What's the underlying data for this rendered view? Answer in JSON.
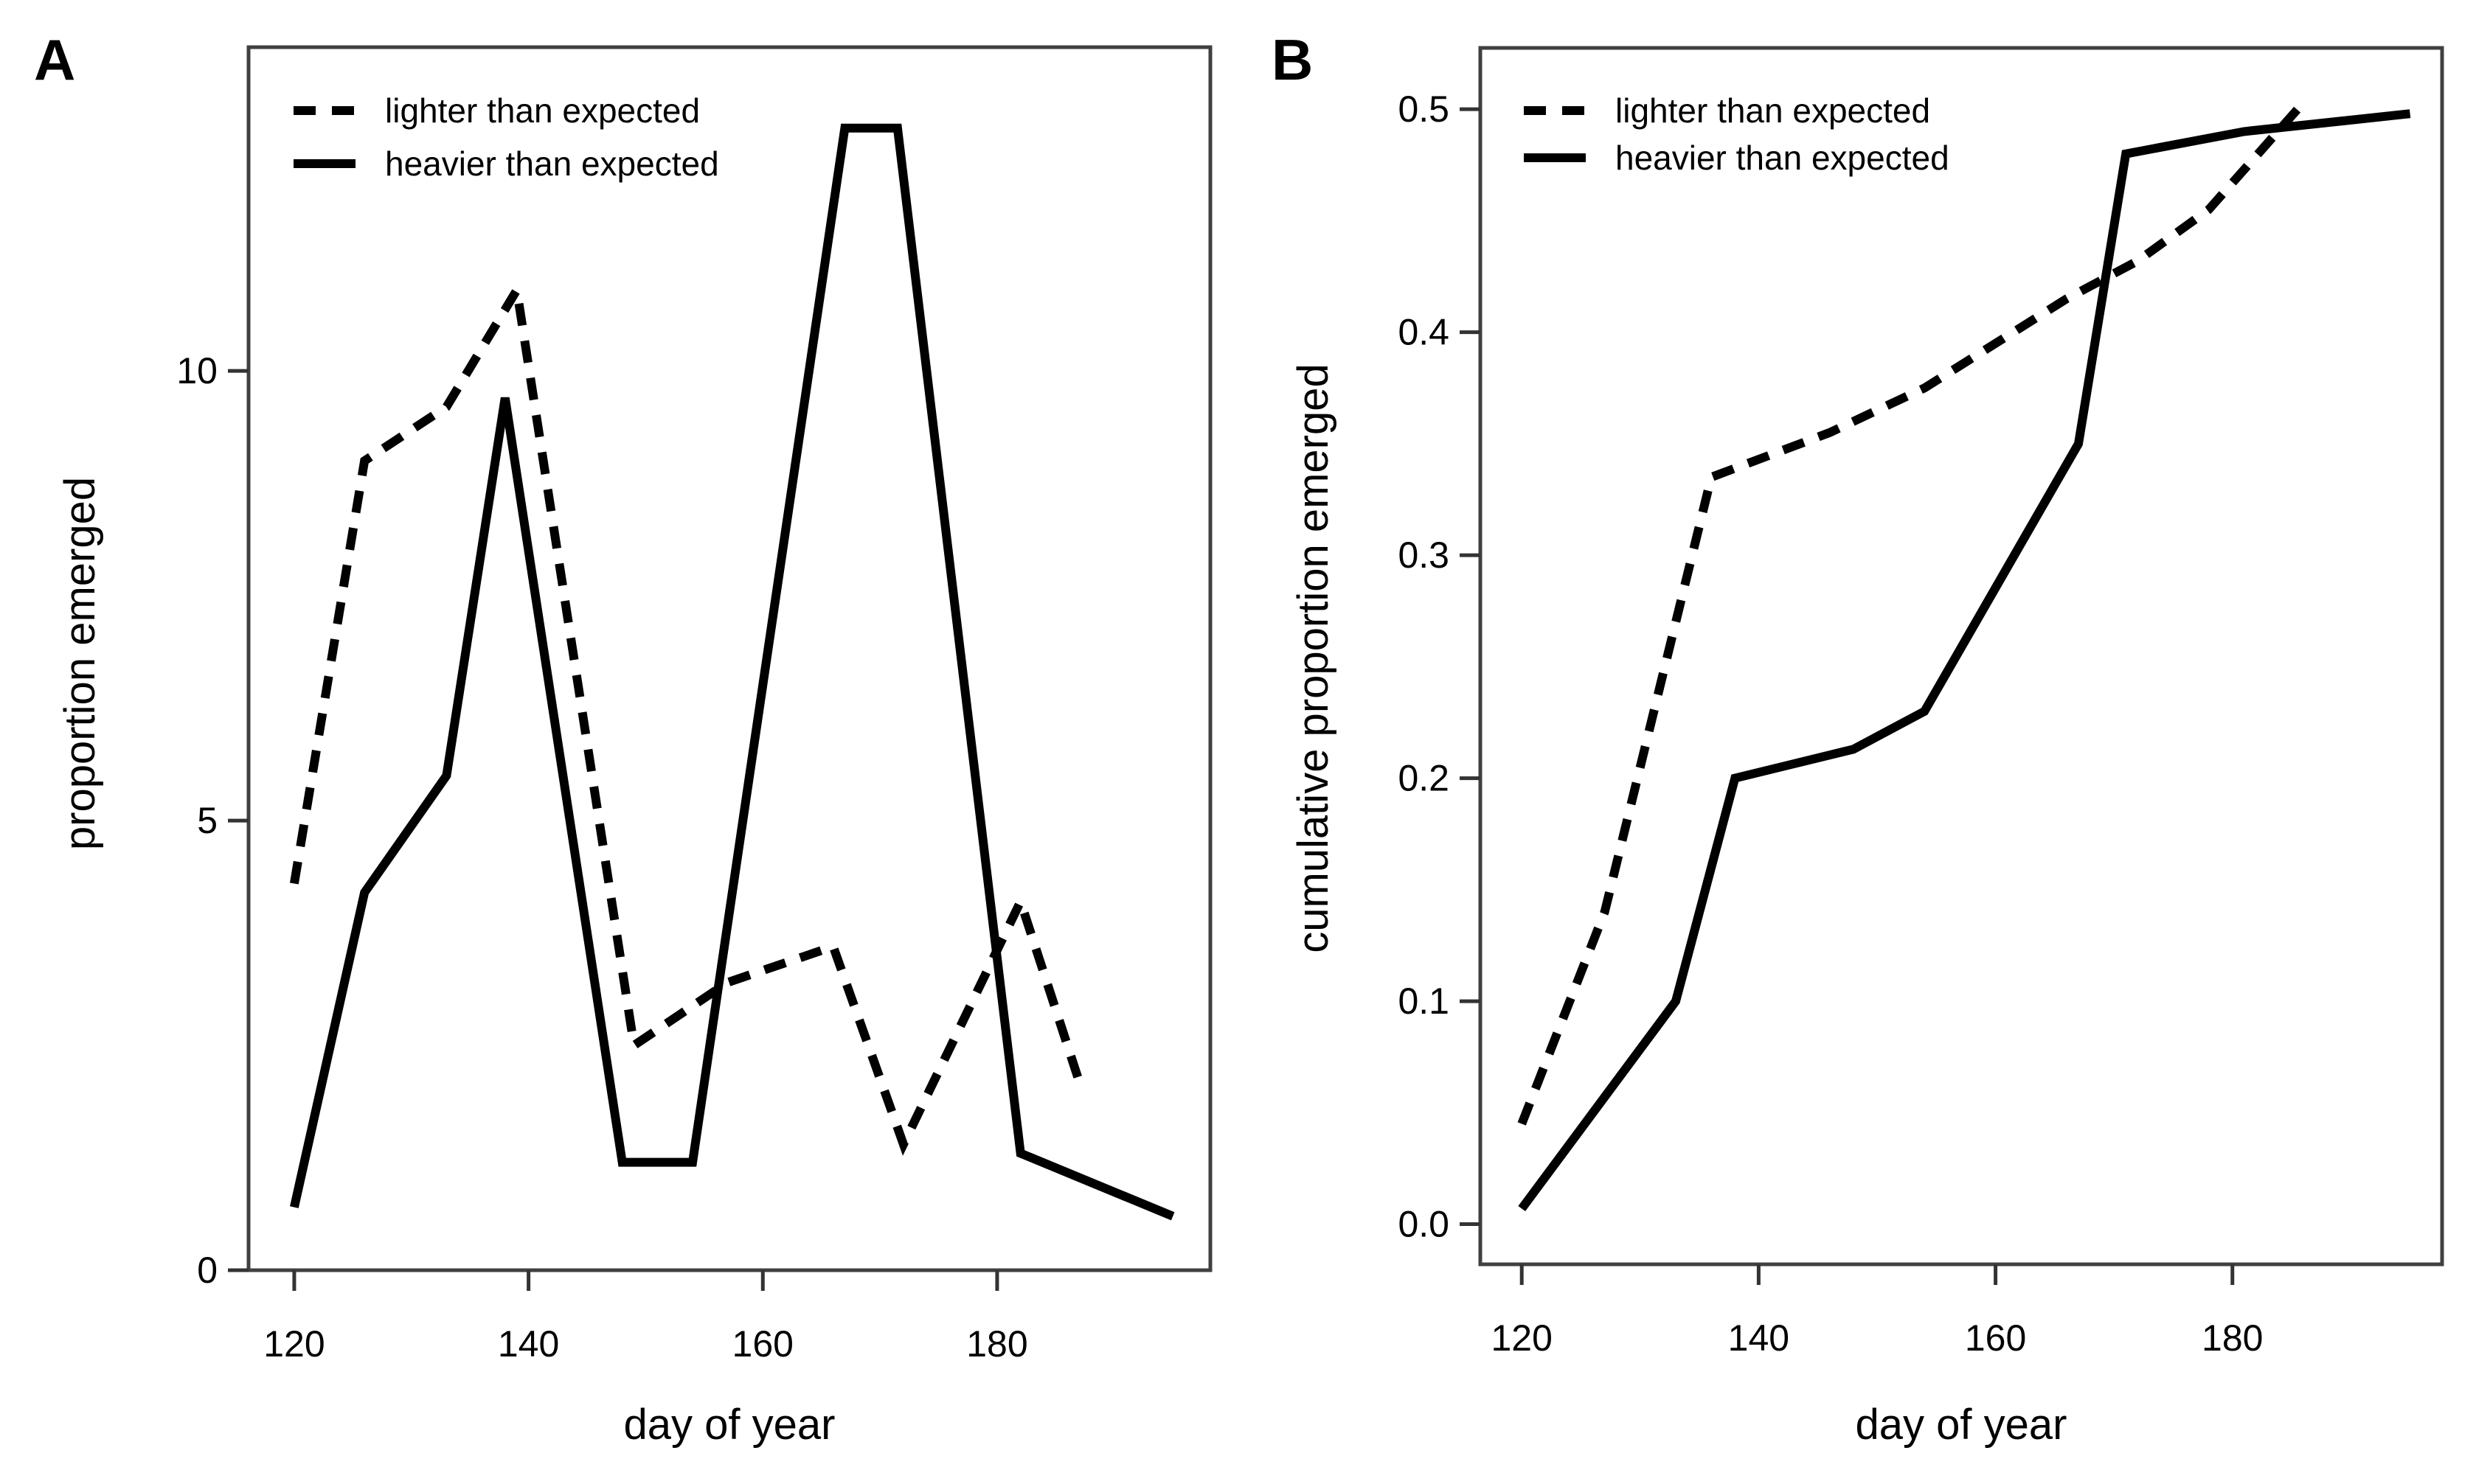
{
  "figure": {
    "panel_a_label": "A",
    "panel_b_label": "B"
  },
  "colors": {
    "line": "#000000",
    "axis_box": "#404040",
    "tick": "#333333",
    "background": "#ffffff"
  },
  "legend": {
    "dashed_label": "lighter than expected",
    "solid_label": "heavier than expected"
  },
  "chart_data": [
    {
      "id": "A",
      "type": "line",
      "title": "",
      "xlabel": "day of year",
      "ylabel": "proportion emerged",
      "x_ticks": [
        120,
        140,
        160,
        180
      ],
      "x_tick_labels": [
        "120",
        "140",
        "160",
        "180"
      ],
      "y_ticks": [
        0,
        5,
        10
      ],
      "y_tick_labels": [
        "0",
        "5",
        "10"
      ],
      "xlim": [
        116.1,
        198.2
      ],
      "ylim": [
        0,
        13.6
      ],
      "grid": false,
      "legend_position": "top-left",
      "series": [
        {
          "name": "lighter than expected",
          "style": "dashed",
          "points": [
            [
              120,
              4.3
            ],
            [
              126,
              9.0
            ],
            [
              133,
              9.6
            ],
            [
              139,
              10.9
            ],
            [
              149,
              2.5
            ],
            [
              157,
              3.2
            ],
            [
              166,
              3.6
            ],
            [
              172,
              1.4
            ],
            [
              182,
              4.1
            ],
            [
              187,
              2.1
            ]
          ]
        },
        {
          "name": "heavier than expected",
          "style": "solid",
          "points": [
            [
              120,
              0.7
            ],
            [
              126,
              4.2
            ],
            [
              133,
              5.5
            ],
            [
              138,
              9.7
            ],
            [
              148,
              1.2
            ],
            [
              154,
              1.2
            ],
            [
              167,
              12.7
            ],
            [
              171.5,
              12.7
            ],
            [
              182,
              1.3
            ],
            [
              195,
              0.6
            ]
          ]
        }
      ]
    },
    {
      "id": "B",
      "type": "line",
      "title": "",
      "xlabel": "day of year",
      "ylabel": "cumulative proportion emerged",
      "x_ticks": [
        120,
        140,
        160,
        180
      ],
      "x_tick_labels": [
        "120",
        "140",
        "160",
        "180"
      ],
      "y_ticks": [
        0.0,
        0.1,
        0.2,
        0.3,
        0.4,
        0.5
      ],
      "y_tick_labels": [
        "0.0",
        "0.1",
        "0.2",
        "0.3",
        "0.4",
        "0.5"
      ],
      "xlim": [
        116.5,
        197.7
      ],
      "ylim": [
        -0.018,
        0.5275
      ],
      "grid": false,
      "legend_position": "top-left",
      "series": [
        {
          "name": "lighter than expected",
          "style": "dashed",
          "points": [
            [
              120,
              0.045
            ],
            [
              127,
              0.14
            ],
            [
              136,
              0.335
            ],
            [
              146,
              0.355
            ],
            [
              154,
              0.375
            ],
            [
              166,
              0.415
            ],
            [
              172,
              0.432
            ],
            [
              178,
              0.455
            ],
            [
              186,
              0.503
            ]
          ]
        },
        {
          "name": "heavier than expected",
          "style": "solid",
          "points": [
            [
              120,
              0.007
            ],
            [
              133,
              0.1
            ],
            [
              138,
              0.2
            ],
            [
              148,
              0.213
            ],
            [
              154,
              0.23
            ],
            [
              167,
              0.35
            ],
            [
              171,
              0.48
            ],
            [
              181,
              0.49
            ],
            [
              195,
              0.498
            ]
          ]
        }
      ]
    }
  ]
}
